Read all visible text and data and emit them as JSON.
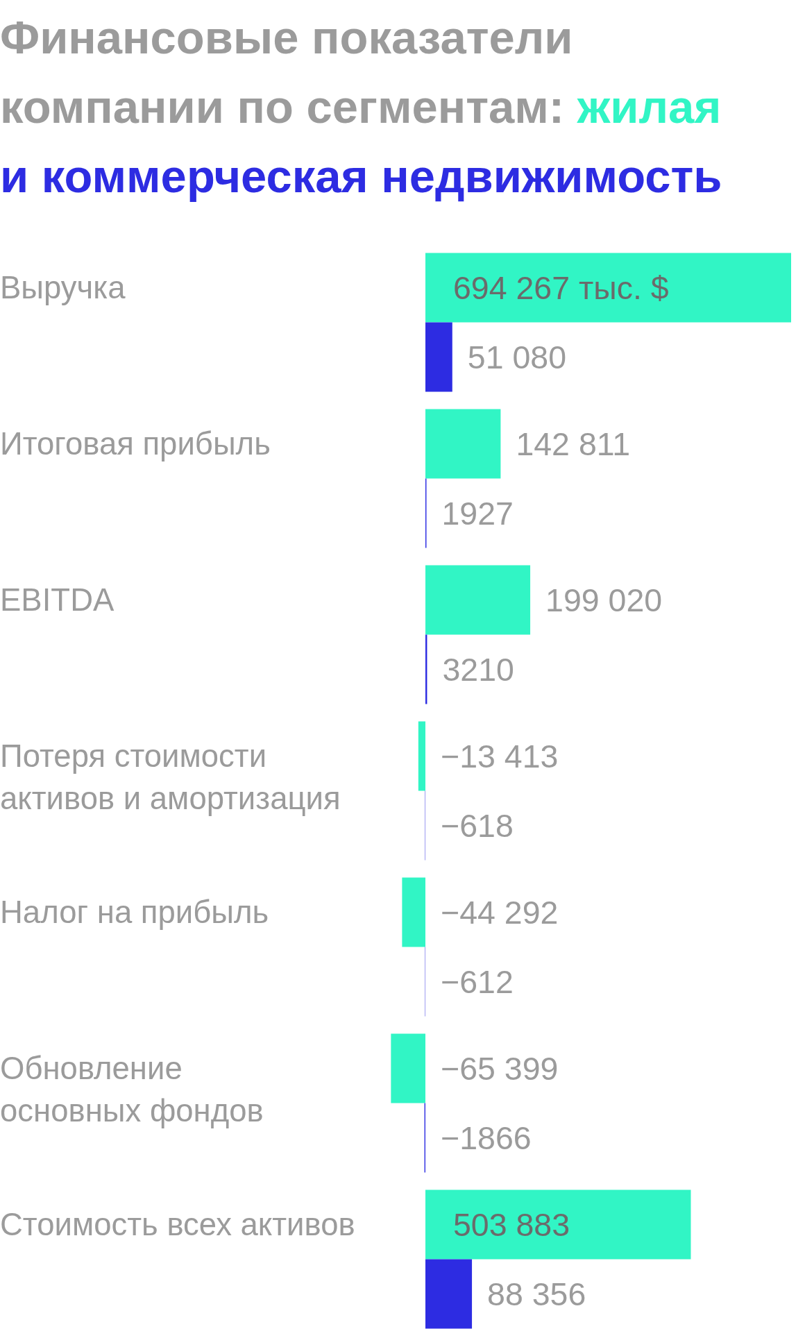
{
  "chart_data": {
    "type": "bar",
    "orientation": "horizontal",
    "title": "Финансовые показатели компании по сегментам:",
    "categories": [
      "Выручка",
      "Итоговая прибыль",
      "EBITDA",
      "Потеря стоимости\nактивов и амортизация",
      "Налог на прибыль",
      "Обновление\nосновных фондов",
      "Стоимость всех активов"
    ],
    "series": [
      {
        "name": "жилая",
        "color": "#31f5c5",
        "values": [
          694267,
          142811,
          199020,
          -13413,
          -44292,
          -65399,
          503883
        ],
        "value_labels": [
          "694 267 тыс. $",
          "142 811",
          "199 020",
          "−13 413",
          "−44 292",
          "−65 399",
          "503 883"
        ]
      },
      {
        "name": "и коммерческая недвижимость",
        "color": "#2d2ce2",
        "values": [
          51080,
          1927,
          3210,
          -618,
          -612,
          -1866,
          88356
        ],
        "value_labels": [
          "51 080",
          "1927",
          "3210",
          "−618",
          "−612",
          "−1866",
          "88 356"
        ]
      }
    ],
    "tick_labels": "y"
  }
}
